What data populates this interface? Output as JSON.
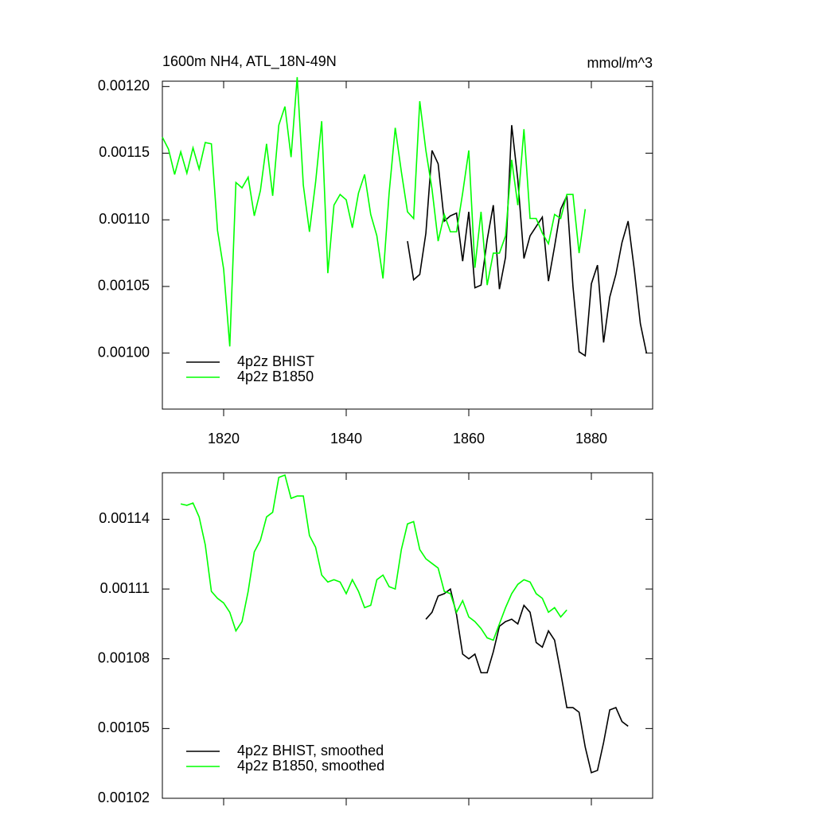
{
  "chart_data": [
    {
      "type": "line",
      "title": "1600m NH4, ATL_18N-49N",
      "units": "mmol/m^3",
      "xlim": [
        1810,
        1890
      ],
      "xticks": [
        1820,
        1840,
        1860,
        1880
      ],
      "ylim": [
        0.000958,
        0.001204
      ],
      "yticks": [
        {
          "value": 0.001,
          "label": "0.00100"
        },
        0.00105,
        {
          "value": 0.0011,
          "label": "0.00110"
        },
        0.00115,
        {
          "value": 0.0012,
          "label": "0.00120"
        }
      ],
      "legend": "lower left",
      "series": [
        {
          "name": "4p2z BHIST",
          "color": "#000000",
          "x": [
            1850,
            1851,
            1852,
            1853,
            1854,
            1855,
            1856,
            1857,
            1858,
            1859,
            1860,
            1861,
            1862,
            1863,
            1864,
            1865,
            1866,
            1867,
            1868,
            1869,
            1870,
            1871,
            1872,
            1873,
            1874,
            1875,
            1876,
            1877,
            1878,
            1879,
            1880,
            1881,
            1882,
            1883,
            1884,
            1885,
            1886,
            1887,
            1888,
            1889
          ],
          "values": [
            0.001084,
            0.001055,
            0.001059,
            0.00109,
            0.001152,
            0.001142,
            0.001099,
            0.001103,
            0.001105,
            0.001069,
            0.001106,
            0.001049,
            0.001051,
            0.001085,
            0.001111,
            0.001048,
            0.001072,
            0.001171,
            0.00113,
            0.001071,
            0.001088,
            0.001095,
            0.001102,
            0.001054,
            0.00108,
            0.001108,
            0.001118,
            0.00105,
            0.001001,
            0.000998,
            0.001052,
            0.001066,
            0.001008,
            0.001042,
            0.001059,
            0.001083,
            0.001099,
            0.001063,
            0.001022,
            0.001
          ]
        },
        {
          "name": "4p2z B1850",
          "color": "#00ff00",
          "x": [
            1810,
            1811,
            1812,
            1813,
            1814,
            1815,
            1816,
            1817,
            1818,
            1819,
            1820,
            1821,
            1822,
            1823,
            1824,
            1825,
            1826,
            1827,
            1828,
            1829,
            1830,
            1831,
            1832,
            1833,
            1834,
            1835,
            1836,
            1837,
            1838,
            1839,
            1840,
            1841,
            1842,
            1843,
            1844,
            1845,
            1846,
            1847,
            1848,
            1849,
            1850,
            1851,
            1852,
            1853,
            1854,
            1855,
            1856,
            1857,
            1858,
            1859,
            1860,
            1861,
            1862,
            1863,
            1864,
            1865,
            1866,
            1867,
            1868,
            1869,
            1870,
            1871,
            1872,
            1873,
            1874,
            1875,
            1876,
            1877,
            1878,
            1879
          ],
          "values": [
            0.001162,
            0.001153,
            0.001134,
            0.001151,
            0.001135,
            0.001154,
            0.001138,
            0.001158,
            0.001157,
            0.001092,
            0.001063,
            0.001005,
            0.001128,
            0.001124,
            0.001132,
            0.001103,
            0.001122,
            0.001157,
            0.001118,
            0.001171,
            0.001185,
            0.001147,
            0.001207,
            0.001126,
            0.001091,
            0.001128,
            0.001174,
            0.00106,
            0.001111,
            0.001119,
            0.001115,
            0.001094,
            0.00112,
            0.001134,
            0.001104,
            0.001088,
            0.001056,
            0.00112,
            0.001169,
            0.001136,
            0.001106,
            0.001101,
            0.001189,
            0.001152,
            0.001123,
            0.001084,
            0.001104,
            0.001091,
            0.001091,
            0.00112,
            0.001152,
            0.001064,
            0.001106,
            0.001051,
            0.001075,
            0.001075,
            0.001088,
            0.001145,
            0.001111,
            0.001168,
            0.001101,
            0.001101,
            0.00109,
            0.001082,
            0.001104,
            0.001101,
            0.001119,
            0.001119,
            0.001075,
            0.001108
          ]
        }
      ]
    },
    {
      "type": "line",
      "xlim": [
        1810,
        1890
      ],
      "xticks": [
        1820,
        1840,
        1860,
        1880
      ],
      "ylim": [
        0.00102,
        0.00116
      ],
      "yticks": [
        0.00102,
        0.00105,
        0.00108,
        0.00111,
        0.00114
      ],
      "legend": "lower left",
      "series": [
        {
          "name": "4p2z BHIST, smoothed",
          "color": "#000000",
          "x": [
            1853,
            1854,
            1855,
            1856,
            1857,
            1858,
            1859,
            1860,
            1861,
            1862,
            1863,
            1864,
            1865,
            1866,
            1867,
            1868,
            1869,
            1870,
            1871,
            1872,
            1873,
            1874,
            1875,
            1876,
            1877,
            1878,
            1879,
            1880,
            1881,
            1882,
            1883,
            1884,
            1885,
            1886
          ],
          "values": [
            0.001097,
            0.0011,
            0.001107,
            0.001108,
            0.00111,
            0.001099,
            0.001082,
            0.00108,
            0.001082,
            0.001074,
            0.001074,
            0.001083,
            0.001094,
            0.001096,
            0.001097,
            0.001095,
            0.001103,
            0.0011,
            0.001087,
            0.001085,
            0.001092,
            0.001088,
            0.001074,
            0.001059,
            0.001059,
            0.001057,
            0.001042,
            0.001031,
            0.001032,
            0.001044,
            0.001058,
            0.001059,
            0.001053,
            0.001051
          ]
        },
        {
          "name": "4p2z B1850, smoothed",
          "color": "#00ff00",
          "x": [
            1813,
            1814,
            1815,
            1816,
            1817,
            1818,
            1819,
            1820,
            1821,
            1822,
            1823,
            1824,
            1825,
            1826,
            1827,
            1828,
            1829,
            1830,
            1831,
            1832,
            1833,
            1834,
            1835,
            1836,
            1837,
            1838,
            1839,
            1840,
            1841,
            1842,
            1843,
            1844,
            1845,
            1846,
            1847,
            1848,
            1849,
            1850,
            1851,
            1852,
            1853,
            1854,
            1855,
            1856,
            1857,
            1858,
            1859,
            1860,
            1861,
            1862,
            1863,
            1864,
            1865,
            1866,
            1867,
            1868,
            1869,
            1870,
            1871,
            1872,
            1873,
            1874,
            1875,
            1876
          ],
          "values": [
            0.0011466,
            0.001146,
            0.001147,
            0.001141,
            0.001129,
            0.001109,
            0.001106,
            0.001104,
            0.0011,
            0.001092,
            0.001096,
            0.001109,
            0.001126,
            0.001131,
            0.001141,
            0.001143,
            0.001158,
            0.001159,
            0.001149,
            0.00115,
            0.00115,
            0.001133,
            0.001128,
            0.001116,
            0.001113,
            0.001114,
            0.001113,
            0.001108,
            0.001114,
            0.001109,
            0.001102,
            0.001103,
            0.001114,
            0.001116,
            0.001111,
            0.00111,
            0.001127,
            0.001138,
            0.001139,
            0.001127,
            0.001123,
            0.001121,
            0.001119,
            0.001109,
            0.001108,
            0.0011,
            0.001105,
            0.001098,
            0.001096,
            0.001093,
            0.001089,
            0.001088,
            0.001095,
            0.001102,
            0.001108,
            0.001112,
            0.001114,
            0.001113,
            0.001108,
            0.001106,
            0.0011,
            0.001102,
            0.001098,
            0.001101
          ]
        }
      ]
    }
  ]
}
